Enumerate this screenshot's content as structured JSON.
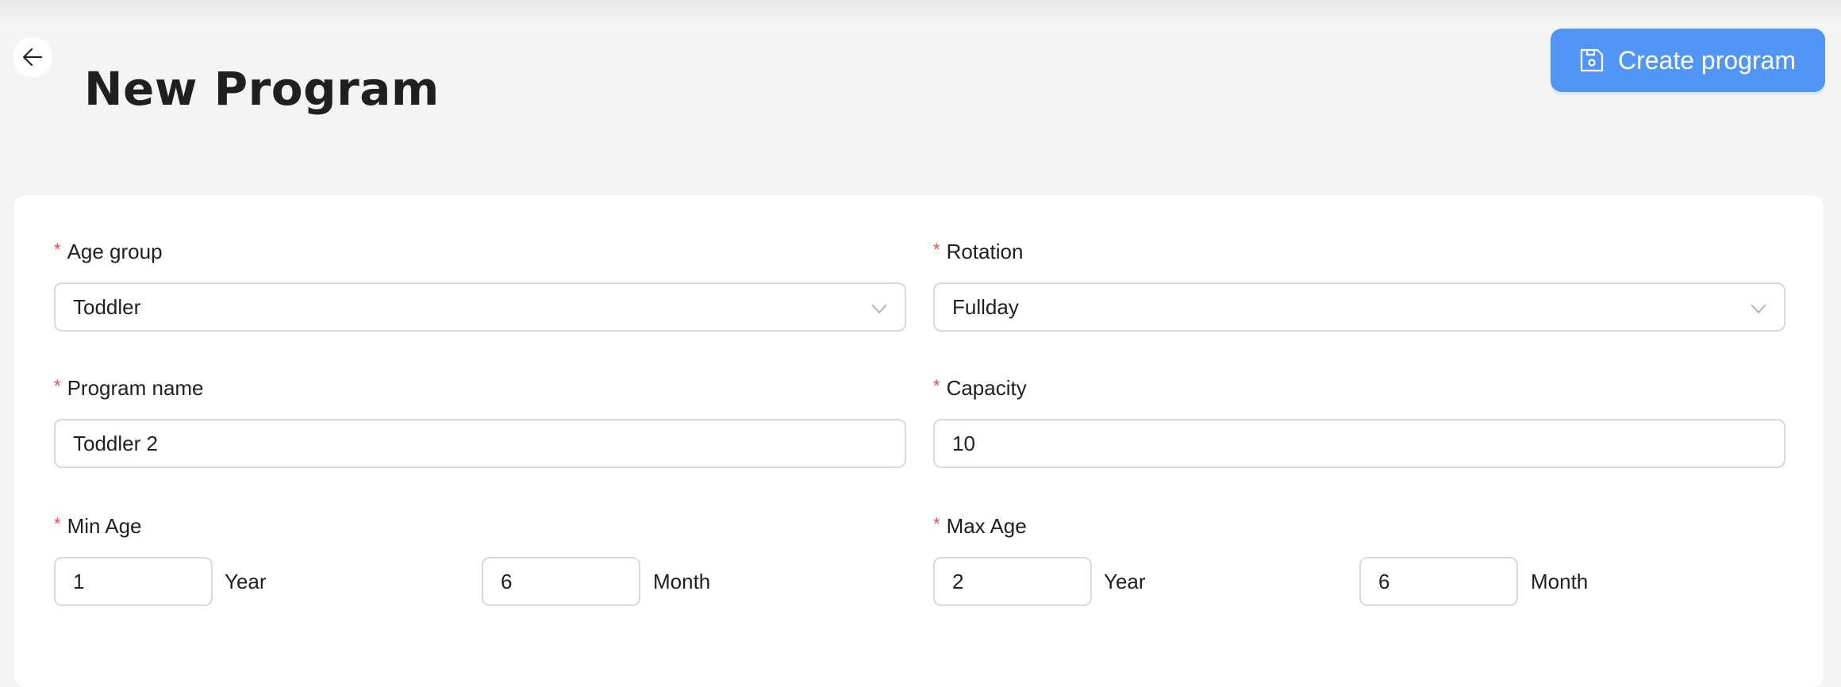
{
  "header": {
    "title": "New Program",
    "back_icon": "arrow-left-icon"
  },
  "actions": {
    "create_label": "Create program",
    "create_icon": "floppy-disk-icon",
    "accent": "#5296f5"
  },
  "form": {
    "required_marker": "*",
    "age_group": {
      "label": "Age group",
      "value": "Toddler"
    },
    "rotation": {
      "label": "Rotation",
      "value": "Fullday"
    },
    "program_name": {
      "label": "Program name",
      "value": "Toddler 2"
    },
    "capacity": {
      "label": "Capacity",
      "value": "10"
    },
    "min_age": {
      "label": "Min Age",
      "years": "1",
      "months": "6",
      "year_unit": "Year",
      "month_unit": "Month"
    },
    "max_age": {
      "label": "Max Age",
      "years": "2",
      "months": "6",
      "year_unit": "Year",
      "month_unit": "Month"
    }
  }
}
